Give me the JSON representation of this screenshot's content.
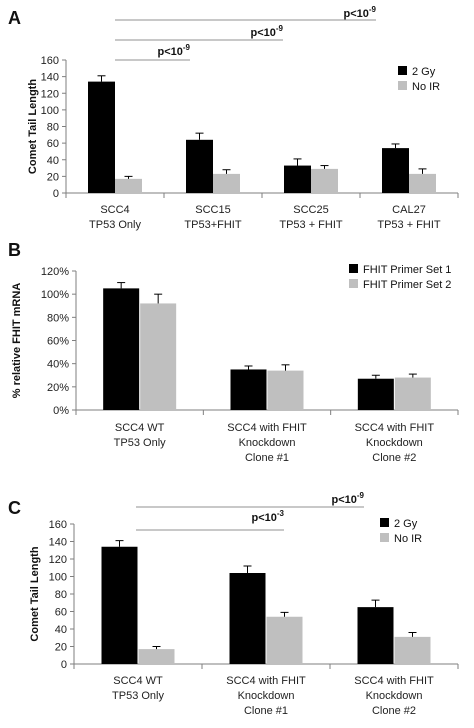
{
  "colors": {
    "series_dark": "#000000",
    "series_light": "#bfbfbf",
    "axis": "#7f7f7f",
    "sig_line": "#a6a6a6"
  },
  "chart_data": [
    {
      "panel": "A",
      "type": "bar",
      "ylabel": "Comet Tail Length",
      "ylim": [
        0,
        160
      ],
      "yticks": [
        "0",
        "20",
        "40",
        "60",
        "80",
        "100",
        "120",
        "140",
        "160"
      ],
      "categories": [
        [
          "SCC4",
          "TP53 Only"
        ],
        [
          "SCC15",
          "TP53+FHIT"
        ],
        [
          "SCC25",
          "TP53 + FHIT"
        ],
        [
          "CAL27",
          "TP53 + FHIT"
        ]
      ],
      "series": [
        {
          "name": "2 Gy",
          "values": [
            134,
            64,
            33,
            54
          ],
          "errors": [
            7,
            8,
            8,
            5
          ]
        },
        {
          "name": "No IR",
          "values": [
            17,
            23,
            29,
            23
          ],
          "errors": [
            3,
            5,
            4,
            6
          ]
        }
      ],
      "legend": "top-right",
      "significance": [
        {
          "label": "p<10",
          "exp": "-9",
          "from": 0,
          "to": 1
        },
        {
          "label": "p<10",
          "exp": "-9",
          "from": 0,
          "to": 2
        },
        {
          "label": "p<10",
          "exp": "-9",
          "from": 0,
          "to": 3
        }
      ]
    },
    {
      "panel": "B",
      "type": "bar",
      "ylabel": "% relative FHIT mRNA",
      "ylim": [
        0,
        120
      ],
      "yticks": [
        "0%",
        "20%",
        "40%",
        "60%",
        "80%",
        "100%",
        "120%"
      ],
      "categories": [
        [
          "SCC4 WT",
          "TP53 Only"
        ],
        [
          "SCC4 with FHIT",
          "Knockdown",
          "Clone #1"
        ],
        [
          "SCC4 with FHIT",
          "Knockdown",
          "Clone #2"
        ]
      ],
      "series": [
        {
          "name": "FHIT Primer Set 1",
          "values": [
            105,
            35,
            27
          ],
          "errors": [
            5,
            3,
            3
          ]
        },
        {
          "name": "FHIT Primer Set 2",
          "values": [
            92,
            34,
            28
          ],
          "errors": [
            8,
            5,
            3
          ]
        }
      ],
      "legend": "top-right",
      "significance": []
    },
    {
      "panel": "C",
      "type": "bar",
      "ylabel": "Comet Tail Length",
      "ylim": [
        0,
        160
      ],
      "yticks": [
        "0",
        "20",
        "40",
        "60",
        "80",
        "100",
        "120",
        "140",
        "160"
      ],
      "categories": [
        [
          "SCC4 WT",
          "TP53 Only"
        ],
        [
          "SCC4 with FHIT",
          "Knockdown",
          "Clone #1"
        ],
        [
          "SCC4 with FHIT",
          "Knockdown",
          "Clone #2"
        ]
      ],
      "series": [
        {
          "name": "2 Gy",
          "values": [
            134,
            104,
            65
          ],
          "errors": [
            7,
            8,
            8
          ]
        },
        {
          "name": "No IR",
          "values": [
            17,
            54,
            31
          ],
          "errors": [
            3,
            5,
            5
          ]
        }
      ],
      "legend": "top-right",
      "significance": [
        {
          "label": "p<10",
          "exp": "-3",
          "from": 0,
          "to": 1
        },
        {
          "label": "p<10",
          "exp": "-9",
          "from": 0,
          "to": 2
        }
      ]
    }
  ]
}
